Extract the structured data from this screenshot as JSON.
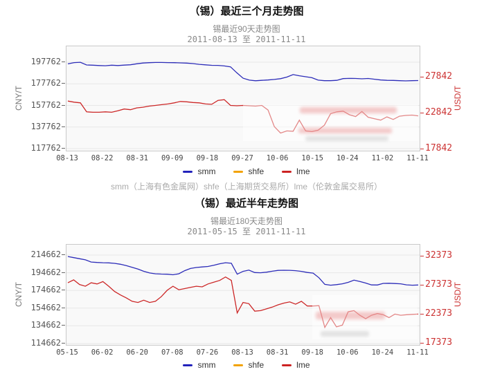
{
  "caption": "smm（上海有色金属网）shfe（上海期货交易所）lme（伦敦金属交易所）",
  "chart_data": [
    {
      "type": "line",
      "title": "（锡）最近三个月走势图",
      "subtitle": "锡最近90天走势图",
      "date_range": "2011-08-13 至 2011-11-11",
      "grid": "horizontal",
      "legend_position": "bottom",
      "left_axis": {
        "unit": "CNY/T",
        "color": "#555555",
        "ticks": [
          117762,
          137762,
          157762,
          177762,
          197762
        ],
        "min": 115842,
        "max": 212482
      },
      "right_axis": {
        "unit": "USD/T",
        "color": "#cc3333",
        "ticks": [
          17842,
          22842,
          27842
        ],
        "min": 17649,
        "max": 32169
      },
      "x_ticks": [
        "08-13",
        "08-22",
        "08-31",
        "09-09",
        "09-18",
        "09-27",
        "10-06",
        "10-15",
        "10-24",
        "11-02",
        "11-11"
      ],
      "legend": [
        {
          "label": "smm",
          "color": "#2222bb"
        },
        {
          "label": "shfe",
          "color": "#f2a200"
        },
        {
          "label": "lme",
          "color": "#cc2222"
        }
      ],
      "series": [
        {
          "name": "smm",
          "axis": "left",
          "color": "#2b2bb8",
          "values": [
            196200,
            197400,
            197700,
            195200,
            195000,
            194700,
            194500,
            195000,
            194700,
            195100,
            195400,
            196300,
            197000,
            197300,
            197500,
            197500,
            197400,
            197300,
            197100,
            196900,
            196500,
            195800,
            195300,
            194900,
            194800,
            194300,
            193500,
            188000,
            183000,
            181200,
            180600,
            181000,
            181300,
            181800,
            182500,
            184000,
            186300,
            185200,
            184300,
            183400,
            181200,
            180700,
            180700,
            181000,
            182600,
            182800,
            182700,
            182400,
            182700,
            182000,
            181300,
            181000,
            180900,
            180700,
            180500,
            180700,
            180800
          ]
        },
        {
          "name": "lme",
          "axis": "right",
          "color": "#cc2626",
          "values": [
            24550,
            24400,
            24300,
            23050,
            23000,
            23000,
            23050,
            23000,
            23200,
            23450,
            23350,
            23600,
            23700,
            23850,
            23950,
            24050,
            24150,
            24300,
            24500,
            24450,
            24350,
            24300,
            24150,
            24100,
            24650,
            24750,
            23950,
            23900,
            23950,
            23900,
            23850,
            23950,
            23300,
            21000,
            20100,
            20400,
            20350,
            21900,
            20400,
            20300,
            20500,
            21200,
            22800,
            23050,
            23150,
            22650,
            22400,
            23100,
            22300,
            22100,
            21900,
            22350,
            22000,
            22450,
            22550,
            22600,
            22500
          ]
        }
      ]
    },
    {
      "type": "line",
      "title": "（锡）最近半年走势图",
      "subtitle": "锡最近180天走势图",
      "date_range": "2011-05-15 至 2011-11-11",
      "grid": "horizontal",
      "legend_position": "bottom",
      "left_axis": {
        "unit": "CNY/T",
        "color": "#555555",
        "ticks": [
          114662,
          134662,
          154662,
          174662,
          194662,
          214662
        ],
        "min": 113100,
        "max": 226381
      },
      "right_axis": {
        "unit": "USD/T",
        "color": "#cc3333",
        "ticks": [
          17373,
          22373,
          27373,
          32373
        ],
        "min": 17194,
        "max": 34456
      },
      "x_ticks": [
        "05-15",
        "06-02",
        "06-20",
        "07-08",
        "07-26",
        "08-13",
        "08-31",
        "09-18",
        "10-06",
        "10-24",
        "11-11"
      ],
      "legend": [
        {
          "label": "smm",
          "color": "#2222bb"
        },
        {
          "label": "shfe",
          "color": "#f2a200"
        },
        {
          "label": "lme",
          "color": "#cc2222"
        }
      ],
      "series": [
        {
          "name": "smm",
          "axis": "left",
          "color": "#2b2bb8",
          "values": [
            213000,
            211800,
            210500,
            209300,
            206800,
            206300,
            206000,
            205800,
            205300,
            204300,
            202800,
            200800,
            198800,
            196300,
            194400,
            193500,
            193200,
            193000,
            192400,
            193500,
            197000,
            199500,
            200600,
            201200,
            201800,
            203200,
            204800,
            206000,
            205400,
            193000,
            196200,
            197600,
            194900,
            194700,
            195300,
            196400,
            197300,
            197500,
            197400,
            197000,
            196200,
            195000,
            194300,
            189000,
            181500,
            180600,
            181200,
            182200,
            183800,
            186300,
            184800,
            183000,
            180900,
            180800,
            182600,
            182800,
            182500,
            182200,
            181000,
            180600,
            180800
          ]
        },
        {
          "name": "lme",
          "axis": "right",
          "color": "#cc2626",
          "values": [
            27900,
            28400,
            27600,
            27300,
            27900,
            27700,
            28100,
            27300,
            26400,
            25800,
            25300,
            24700,
            24500,
            24900,
            24500,
            24700,
            25500,
            26600,
            27300,
            26700,
            26900,
            27100,
            27300,
            27200,
            27700,
            28000,
            28300,
            28900,
            28300,
            22700,
            24500,
            24300,
            23000,
            23100,
            23400,
            23700,
            24100,
            24400,
            24600,
            24200,
            24700,
            23900,
            23900,
            23950,
            20200,
            21900,
            20300,
            20600,
            22900,
            23100,
            22300,
            21700,
            22300,
            22600,
            22400,
            21900,
            22500,
            22300,
            22400,
            22450,
            22500
          ]
        }
      ]
    }
  ]
}
